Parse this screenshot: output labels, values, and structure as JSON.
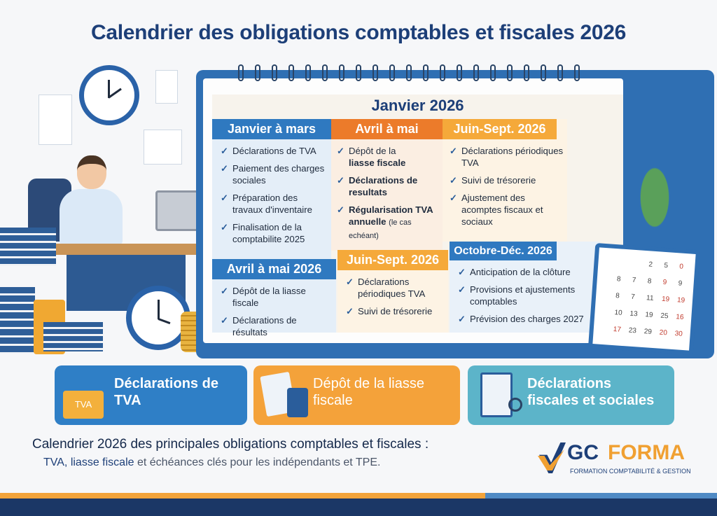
{
  "title": "Calendrier des obligations comptables et fiscales 2026",
  "calendar": {
    "month": "Janvier 2026",
    "columns": [
      {
        "header": "Janvier à mars",
        "items": [
          "Déclarations de TVA",
          "Paiement des charges sociales",
          "Préparation des travaux d'inventaire",
          "Finalisation de la comptabilite 2025"
        ]
      },
      {
        "header": "Avril à mai",
        "items": [
          "Dépôt de la",
          "liasse fiscale",
          "Déclarations de resultats",
          "Régularisation TVA",
          "annuelle",
          "(le cas echéant)"
        ]
      },
      {
        "header": "Juin-Sept. 2026",
        "items": [
          "Déclarations périodiques TVA",
          "Suivi de trésorerie",
          "Ajustement des acomptes fiscaux et sociaux"
        ]
      }
    ],
    "lower": [
      {
        "header": "Avril à mai 2026",
        "items": [
          "Dépôt de la liasse fiscale",
          "Déclarations de résultats"
        ]
      },
      {
        "header": "Juin-Sept. 2026",
        "items": [
          "Déclarations périodiques TVA",
          "Suivi de trésorerie"
        ]
      },
      {
        "header": "Octobre-Déc. 2026",
        "items": [
          "Anticipation de la clôture",
          "Provisions et ajustements comptables",
          "Prévision des charges 2027"
        ]
      }
    ],
    "desk_calendar_numbers": [
      "2",
      "5",
      "0",
      "8",
      "7",
      "8",
      "9",
      "9",
      "8",
      "7",
      "11",
      "19",
      "19",
      "10",
      "13",
      "19",
      "25",
      "16",
      "17",
      "23",
      "29",
      "20",
      "30"
    ]
  },
  "cards": [
    {
      "label": "Déclarations de TVA",
      "icon": "tva-folder-icon",
      "badge": "TVA",
      "color": "#2f7fc6"
    },
    {
      "label": "Dépôt de la liasse fiscale",
      "icon": "calculator-document-icon",
      "color": "#f4a23a"
    },
    {
      "label": "Déclarations fiscales et sociales",
      "icon": "clipboard-magnifier-icon",
      "color": "#5cb4c9"
    }
  ],
  "caption": {
    "line1": "Calendrier 2026 des principales obligations comptables et fiscales :",
    "bold": "TVA, liasse fiscale",
    "rest": "et échéances clés pour les indépendants et TPE."
  },
  "logo": {
    "gc": "GC",
    "forma": "FORMA",
    "tagline": "FORMATION COMPTABILITÉ & GESTION"
  }
}
